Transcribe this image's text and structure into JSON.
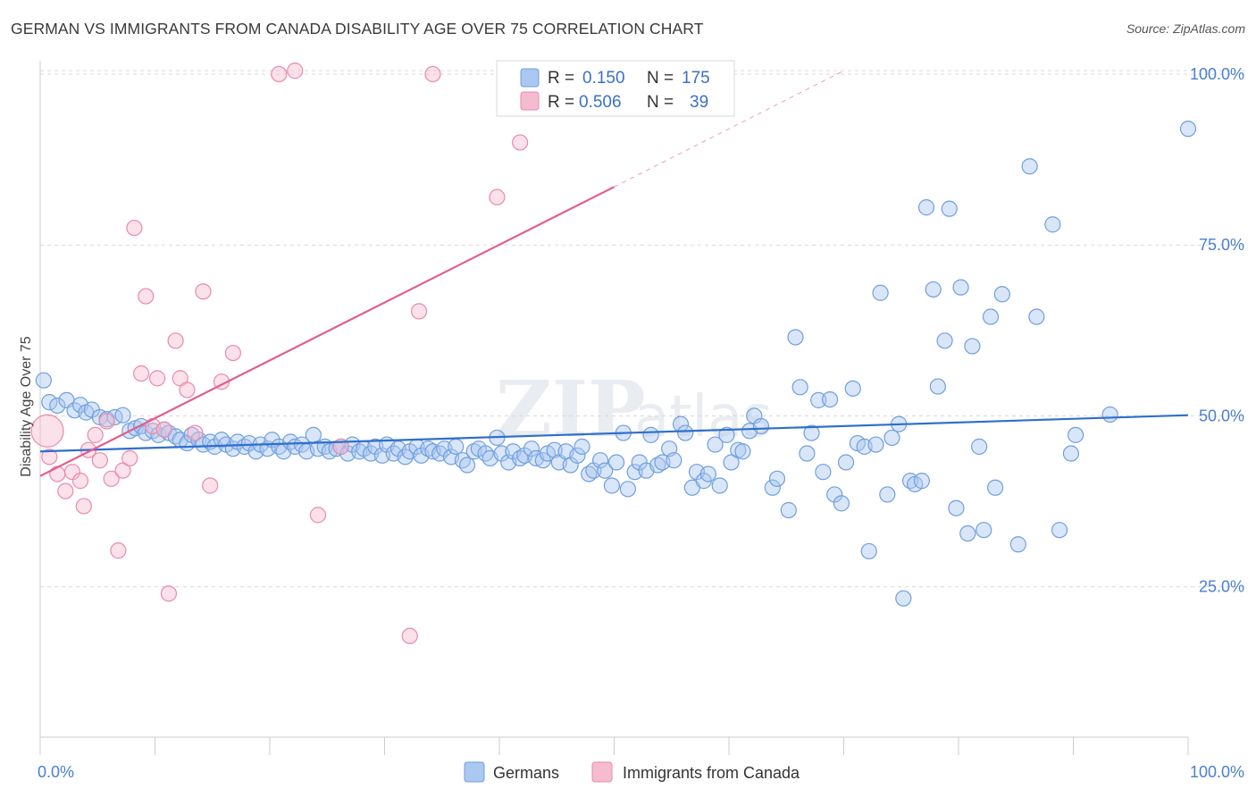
{
  "header": {
    "title": "GERMAN VS IMMIGRANTS FROM CANADA DISABILITY AGE OVER 75 CORRELATION CHART",
    "source": "Source: ZipAtlas.com"
  },
  "watermark": {
    "zip": "ZIP",
    "atlas": "atlas"
  },
  "legend_top": {
    "rows": [
      {
        "r_label": "R =",
        "r_value": "0.150",
        "n_label": "N =",
        "n_value": "175"
      },
      {
        "r_label": "R =",
        "r_value": "0.506",
        "n_label": "N =",
        "n_value": "39"
      }
    ]
  },
  "legend_bottom": {
    "items": [
      {
        "label": "Germans"
      },
      {
        "label": "Immigrants from Canada"
      }
    ]
  },
  "colors": {
    "germans_fill": "#aac8f0",
    "germans_stroke": "#6f9fe0",
    "germans_line": "#2f6fcc",
    "canada_fill": "#f5bcd0",
    "canada_stroke": "#e98aac",
    "canada_line": "#e0608c",
    "tick_text": "#4a7fd0",
    "grid": "#d8d8d8"
  },
  "chart_data": {
    "type": "scatter",
    "title": "GERMAN VS IMMIGRANTS FROM CANADA DISABILITY AGE OVER 75 CORRELATION CHART",
    "xlabel": "",
    "ylabel": "Disability Age Over 75",
    "xlim": [
      0,
      100
    ],
    "ylim": [
      3,
      103
    ],
    "x_tick_labels": [
      "0.0%",
      "100.0%"
    ],
    "y_ticks": [
      25,
      50,
      75,
      100
    ],
    "y_tick_labels": [
      "25.0%",
      "50.0%",
      "75.0%",
      "100.0%"
    ],
    "grid": "horizontal-dashed",
    "legend_placement": "top-center",
    "series": [
      {
        "name": "Germans",
        "R": 0.15,
        "N": 175,
        "trend": {
          "x": [
            0,
            100
          ],
          "y": [
            44.8,
            50.1
          ]
        },
        "points": [
          [
            0.3,
            55.2
          ],
          [
            0.8,
            52
          ],
          [
            1.5,
            51.5
          ],
          [
            2.3,
            52.3
          ],
          [
            3,
            50.8
          ],
          [
            3.5,
            51.6
          ],
          [
            4,
            50.5
          ],
          [
            4.5,
            50.9
          ],
          [
            5.2,
            49.8
          ],
          [
            5.8,
            49.5
          ],
          [
            6.5,
            49.8
          ],
          [
            7.2,
            50.1
          ],
          [
            7.8,
            47.8
          ],
          [
            8.3,
            48.2
          ],
          [
            8.8,
            48.5
          ],
          [
            9.2,
            47.5
          ],
          [
            9.8,
            47.8
          ],
          [
            10.3,
            47.2
          ],
          [
            10.8,
            48
          ],
          [
            11.2,
            47.5
          ],
          [
            11.8,
            47
          ],
          [
            12.2,
            46.5
          ],
          [
            12.8,
            46
          ],
          [
            13.2,
            47.2
          ],
          [
            13.8,
            46.5
          ],
          [
            14.2,
            45.8
          ],
          [
            14.8,
            46.2
          ],
          [
            15.2,
            45.5
          ],
          [
            15.8,
            46.5
          ],
          [
            16.2,
            45.8
          ],
          [
            16.8,
            45.2
          ],
          [
            17.2,
            46.2
          ],
          [
            17.8,
            45.5
          ],
          [
            18.2,
            46
          ],
          [
            18.8,
            44.8
          ],
          [
            19.2,
            45.8
          ],
          [
            19.8,
            45.2
          ],
          [
            20.2,
            46.5
          ],
          [
            20.8,
            45.5
          ],
          [
            21.2,
            44.8
          ],
          [
            21.8,
            46.2
          ],
          [
            22.2,
            45.5
          ],
          [
            22.8,
            45.8
          ],
          [
            23.2,
            44.8
          ],
          [
            23.8,
            47.2
          ],
          [
            24.2,
            45.2
          ],
          [
            24.8,
            45.5
          ],
          [
            25.2,
            44.8
          ],
          [
            25.8,
            45.2
          ],
          [
            26.2,
            45.5
          ],
          [
            26.8,
            44.5
          ],
          [
            27.2,
            45.8
          ],
          [
            27.8,
            44.8
          ],
          [
            28.2,
            45.2
          ],
          [
            28.8,
            44.5
          ],
          [
            29.2,
            45.5
          ],
          [
            29.8,
            44.2
          ],
          [
            30.2,
            45.8
          ],
          [
            30.8,
            44.5
          ],
          [
            31.2,
            45.2
          ],
          [
            31.8,
            44
          ],
          [
            32.2,
            44.8
          ],
          [
            32.8,
            45.5
          ],
          [
            33.2,
            44.2
          ],
          [
            33.8,
            45.2
          ],
          [
            34.2,
            44.8
          ],
          [
            34.8,
            44.5
          ],
          [
            35.2,
            45.2
          ],
          [
            35.8,
            44
          ],
          [
            36.2,
            45.5
          ],
          [
            36.8,
            43.5
          ],
          [
            37.2,
            42.8
          ],
          [
            37.8,
            44.8
          ],
          [
            38.2,
            45.2
          ],
          [
            38.8,
            44.5
          ],
          [
            39.2,
            43.8
          ],
          [
            39.8,
            46.8
          ],
          [
            40.2,
            44.5
          ],
          [
            40.8,
            43.2
          ],
          [
            41.2,
            44.8
          ],
          [
            41.8,
            43.8
          ],
          [
            42.2,
            44.2
          ],
          [
            42.8,
            45.2
          ],
          [
            43.2,
            43.8
          ],
          [
            43.8,
            43.5
          ],
          [
            44.2,
            44.5
          ],
          [
            44.8,
            45
          ],
          [
            45.2,
            43.2
          ],
          [
            45.8,
            44.8
          ],
          [
            46.2,
            42.8
          ],
          [
            46.8,
            44.2
          ],
          [
            47.2,
            45.5
          ],
          [
            47.8,
            41.5
          ],
          [
            48.2,
            42
          ],
          [
            48.8,
            43.5
          ],
          [
            49.2,
            42
          ],
          [
            49.8,
            39.8
          ],
          [
            50.2,
            43.2
          ],
          [
            50.8,
            47.5
          ],
          [
            51.2,
            39.3
          ],
          [
            51.8,
            41.8
          ],
          [
            52.2,
            43.2
          ],
          [
            52.8,
            42
          ],
          [
            53.2,
            47.2
          ],
          [
            53.8,
            42.8
          ],
          [
            54.2,
            43.2
          ],
          [
            54.8,
            45.2
          ],
          [
            55.2,
            43.5
          ],
          [
            55.8,
            48.8
          ],
          [
            56.2,
            47.5
          ],
          [
            56.8,
            39.5
          ],
          [
            57.2,
            41.8
          ],
          [
            57.8,
            40.5
          ],
          [
            58.2,
            41.5
          ],
          [
            58.8,
            45.8
          ],
          [
            59.2,
            39.8
          ],
          [
            59.8,
            47.2
          ],
          [
            60.2,
            43.2
          ],
          [
            60.8,
            45
          ],
          [
            61.2,
            44.8
          ],
          [
            61.8,
            47.8
          ],
          [
            62.2,
            50
          ],
          [
            62.8,
            48.5
          ],
          [
            63.8,
            39.5
          ],
          [
            64.2,
            40.8
          ],
          [
            65.2,
            36.2
          ],
          [
            65.8,
            61.5
          ],
          [
            66.2,
            54.2
          ],
          [
            66.8,
            44.5
          ],
          [
            67.2,
            47.5
          ],
          [
            67.8,
            52.3
          ],
          [
            68.2,
            41.8
          ],
          [
            68.8,
            52.4
          ],
          [
            69.2,
            38.5
          ],
          [
            69.8,
            37.2
          ],
          [
            70.2,
            43.2
          ],
          [
            70.8,
            54
          ],
          [
            71.2,
            46
          ],
          [
            71.8,
            45.5
          ],
          [
            72.2,
            30.2
          ],
          [
            72.8,
            45.8
          ],
          [
            73.2,
            68
          ],
          [
            73.8,
            38.5
          ],
          [
            74.2,
            46.8
          ],
          [
            74.8,
            48.8
          ],
          [
            75.2,
            23.3
          ],
          [
            75.8,
            40.5
          ],
          [
            76.2,
            40
          ],
          [
            76.8,
            40.5
          ],
          [
            77.2,
            80.5
          ],
          [
            77.8,
            68.5
          ],
          [
            78.2,
            54.3
          ],
          [
            78.8,
            61
          ],
          [
            79.2,
            80.3
          ],
          [
            79.8,
            36.5
          ],
          [
            80.2,
            68.8
          ],
          [
            80.8,
            32.8
          ],
          [
            81.2,
            60.2
          ],
          [
            81.8,
            45.5
          ],
          [
            82.2,
            33.3
          ],
          [
            82.8,
            64.5
          ],
          [
            83.2,
            39.5
          ],
          [
            83.8,
            67.8
          ],
          [
            85.2,
            31.2
          ],
          [
            86.2,
            86.5
          ],
          [
            86.8,
            64.5
          ],
          [
            88.2,
            78
          ],
          [
            88.8,
            33.3
          ],
          [
            89.8,
            44.5
          ],
          [
            90.2,
            47.2
          ],
          [
            93.2,
            50.2
          ],
          [
            100,
            92
          ]
        ]
      },
      {
        "name": "Immigrants from Canada",
        "R": 0.506,
        "N": 39,
        "trend": {
          "x": [
            0,
            50
          ],
          "y": [
            41.2,
            83.5
          ]
        },
        "trend_extended": {
          "x": [
            50,
            70
          ],
          "y": [
            83.5,
            100.5
          ]
        },
        "points": [
          [
            0,
            47.8
          ],
          [
            0.8,
            44
          ],
          [
            1.5,
            41.5
          ],
          [
            2.2,
            39
          ],
          [
            2.8,
            41.8
          ],
          [
            3.5,
            40.5
          ],
          [
            3.8,
            36.8
          ],
          [
            4.2,
            45
          ],
          [
            4.8,
            47.2
          ],
          [
            5.2,
            43.5
          ],
          [
            5.8,
            49.2
          ],
          [
            6.2,
            40.8
          ],
          [
            6.8,
            30.3
          ],
          [
            7.2,
            42
          ],
          [
            7.8,
            43.8
          ],
          [
            8.2,
            77.5
          ],
          [
            8.8,
            56.2
          ],
          [
            9.2,
            67.5
          ],
          [
            9.8,
            48.5
          ],
          [
            10.2,
            55.5
          ],
          [
            10.8,
            48
          ],
          [
            11.2,
            24
          ],
          [
            11.8,
            61
          ],
          [
            12.2,
            55.5
          ],
          [
            12.8,
            53.8
          ],
          [
            13.5,
            47.5
          ],
          [
            14.2,
            68.2
          ],
          [
            14.8,
            39.8
          ],
          [
            15.8,
            55
          ],
          [
            16.8,
            59.2
          ],
          [
            20.8,
            100
          ],
          [
            22.2,
            100.5
          ],
          [
            24.2,
            35.5
          ],
          [
            26.2,
            45.5
          ],
          [
            32.2,
            17.8
          ],
          [
            33,
            65.3
          ],
          [
            34.2,
            100
          ],
          [
            39.8,
            82
          ],
          [
            41.8,
            90
          ]
        ]
      }
    ]
  }
}
